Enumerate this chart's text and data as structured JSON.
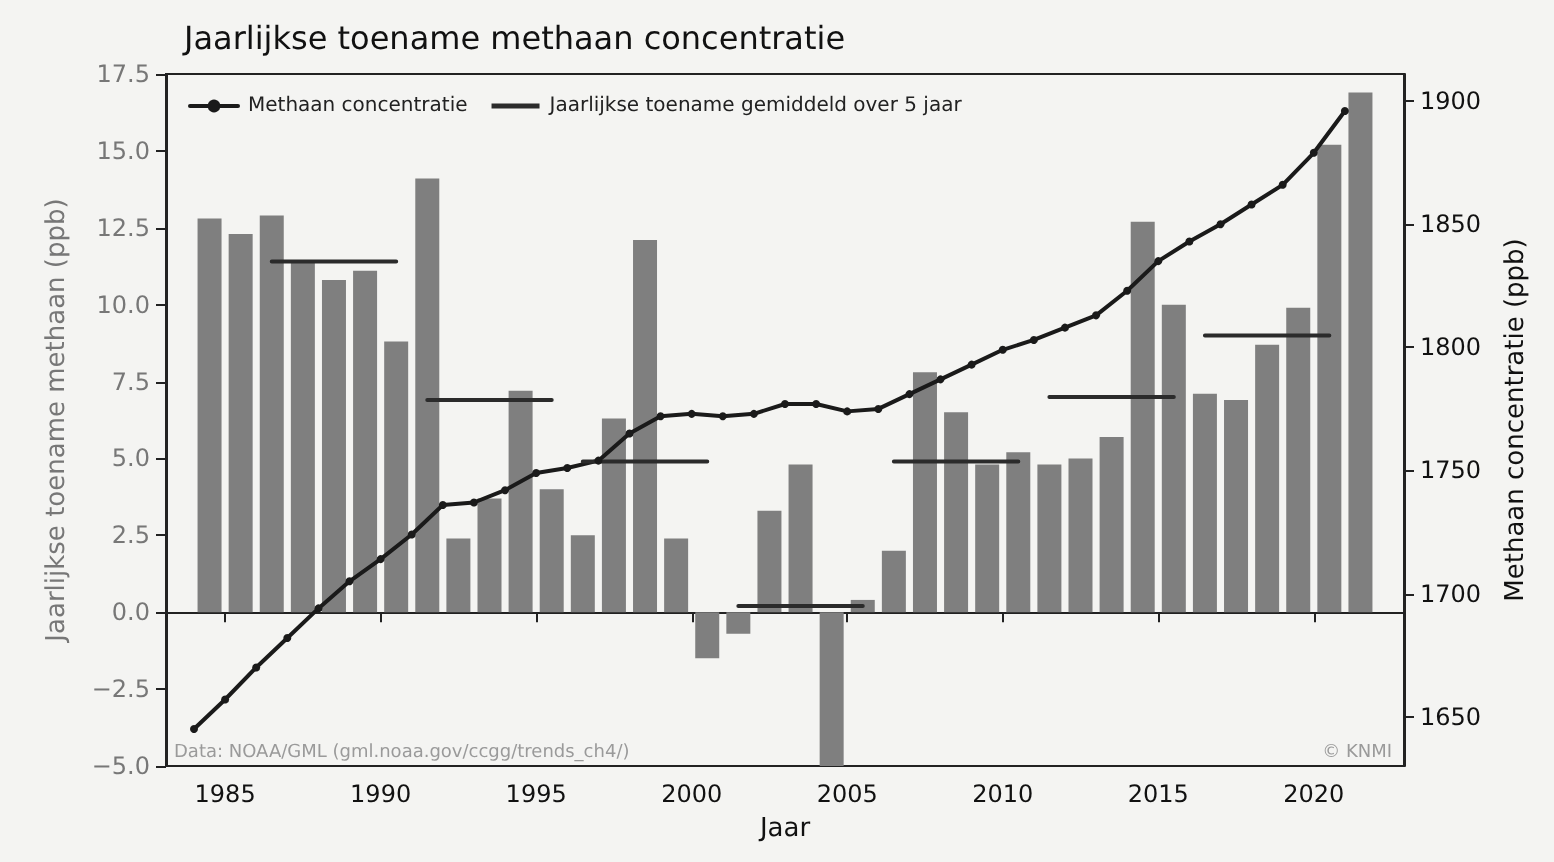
{
  "chart_data": {
    "type": "bar",
    "title": "Jaarlijkse toename methaan concentratie",
    "xlabel": "Jaar",
    "ylabel": "Jaarlijkse toename methaan (ppb)",
    "y2label": "Methaan concentratie (ppb)",
    "annotations": [
      "Data: NOAA/GML (gml.noaa.gov/ccgg/trends_ch4/)",
      "© KNMI"
    ],
    "xlim": [
      1983.1,
      2022.9
    ],
    "xticks": [
      1985,
      1990,
      1995,
      2000,
      2005,
      2010,
      2015,
      2020
    ],
    "ylim": [
      -5,
      17.5
    ],
    "yticks": [
      {
        "value": -5,
        "label": "−5.0"
      },
      {
        "value": -2.5,
        "label": "−2.5"
      },
      {
        "value": 0,
        "label": "0.0"
      },
      2.5,
      {
        "value": 5,
        "label": "5.0"
      },
      7.5,
      {
        "value": 10,
        "label": "10.0"
      },
      12.5,
      {
        "value": 15,
        "label": "15.0"
      },
      17.5
    ],
    "y2lim": [
      1630,
      1911
    ],
    "y2ticks": [
      1650,
      1700,
      1750,
      1800,
      1850,
      1900
    ],
    "legend": "top left",
    "series": [
      {
        "color": "#7f7f7f",
        "x": [
          1984.5,
          1985.5,
          1986.5,
          1987.5,
          1988.5,
          1989.5,
          1990.5,
          1991.5,
          1992.5,
          1993.5,
          1994.5,
          1995.5,
          1996.5,
          1997.5,
          1998.5,
          1999.5,
          2000.5,
          2001.5,
          2002.5,
          2003.5,
          2004.5,
          2005.5,
          2006.5,
          2007.5,
          2008.5,
          2009.5,
          2010.5,
          2011.5,
          2012.5,
          2013.5,
          2014.5,
          2015.5,
          2016.5,
          2017.5,
          2018.5,
          2019.5,
          2020.5,
          2021.5
        ],
        "values": [
          12.8,
          12.3,
          12.9,
          11.4,
          10.8,
          11.1,
          8.8,
          14.1,
          2.4,
          3.7,
          7.2,
          4.0,
          2.5,
          6.3,
          12.1,
          2.4,
          -1.5,
          -0.7,
          3.3,
          4.8,
          -5.0,
          0.4,
          2.0,
          7.8,
          6.5,
          4.8,
          5.2,
          4.8,
          5.0,
          5.7,
          12.7,
          10.0,
          7.1,
          6.9,
          8.7,
          9.9,
          15.2,
          16.9
        ]
      },
      {
        "type": "line",
        "name": "Methaan concentratie",
        "axis": "y2",
        "color": "#1a1a1a",
        "marker": "circle",
        "x": [
          1984,
          1985,
          1986,
          1987,
          1988,
          1989,
          1990,
          1991,
          1992,
          1993,
          1994,
          1995,
          1996,
          1997,
          1998,
          1999,
          2000,
          2001,
          2002,
          2003,
          2004,
          2005,
          2006,
          2007,
          2008,
          2009,
          2010,
          2011,
          2012,
          2013,
          2014,
          2015,
          2016,
          2017,
          2018,
          2019,
          2020,
          2021
        ],
        "values": [
          1645,
          1657,
          1670,
          1682,
          1694,
          1705,
          1714,
          1724,
          1736,
          1737,
          1742,
          1749,
          1751,
          1754,
          1765,
          1772,
          1773,
          1772,
          1773,
          1777,
          1777,
          1774,
          1775,
          1781,
          1787,
          1793,
          1799,
          1803,
          1808,
          1813,
          1823,
          1835,
          1843,
          1850,
          1858,
          1866,
          1879,
          1896
        ]
      },
      {
        "type": "line",
        "name": "Jaarlijkse toename gemiddeld over 5 jaar",
        "color": "#2b2b2b",
        "marker": "none",
        "x": [
          1986.5,
          1990.5,
          1991,
          1991.5,
          1995.5,
          1996,
          1996.5,
          2000.5,
          2001,
          2001.5,
          2005.5,
          2006,
          2006.5,
          2010.5,
          2011,
          2011.5,
          2015.5,
          2016,
          2016.5,
          2020.5
        ],
        "values": [
          11.4,
          11.4,
          null,
          6.9,
          6.9,
          null,
          4.9,
          4.9,
          null,
          0.2,
          0.2,
          null,
          4.9,
          4.9,
          null,
          7.0,
          7.0,
          null,
          9.0,
          9.0
        ]
      }
    ]
  }
}
